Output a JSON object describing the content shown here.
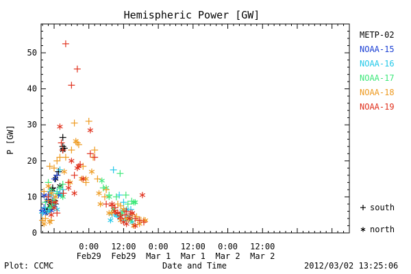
{
  "chart_data": {
    "type": "scatter",
    "title": "Hemispheric Power [GW]",
    "ylabel": "P [GW]",
    "xlabel": "Date and Time",
    "ylim": [
      0,
      58
    ],
    "xlim": [
      -16.5,
      90
    ],
    "yticks": [
      0,
      10,
      20,
      30,
      40,
      50
    ],
    "xticks": [
      {
        "x": 0,
        "time": "0:00",
        "date": "Feb29"
      },
      {
        "x": 12,
        "time": "12:00",
        "date": "Feb29"
      },
      {
        "x": 24,
        "time": "0:00",
        "date": "Mar 1"
      },
      {
        "x": 36,
        "time": "12:00",
        "date": "Mar 1"
      },
      {
        "x": 48,
        "time": "0:00",
        "date": "Mar 2"
      },
      {
        "x": 60,
        "time": "12:00",
        "date": "Mar 2"
      }
    ],
    "markers": [
      {
        "symbol": "+",
        "label": "south"
      },
      {
        "symbol": "*",
        "label": "north"
      }
    ],
    "series": [
      {
        "name": "METP-02",
        "color": "#000000",
        "south": [
          [
            -9,
            26.5
          ],
          [
            -8.5,
            23.5
          ],
          [
            -9,
            24
          ],
          [
            -11,
            16
          ],
          [
            -10.5,
            17
          ],
          [
            -12.5,
            12.5
          ],
          [
            -13,
            7.8
          ],
          [
            -12,
            9
          ],
          [
            -14.5,
            5.8
          ],
          [
            -13.5,
            6.5
          ],
          [
            -12.5,
            8.2
          ]
        ],
        "north": [
          [
            -9,
            23
          ],
          [
            -10,
            13
          ],
          [
            -11.5,
            15
          ],
          [
            -12.5,
            12
          ],
          [
            -13.5,
            7.5
          ],
          [
            -14,
            9
          ],
          [
            -15,
            6.5
          ],
          [
            -13,
            8
          ]
        ]
      },
      {
        "name": "NOAA-15",
        "color": "#1a3fd4",
        "south": [
          [
            -11,
            16
          ],
          [
            -11.8,
            15
          ],
          [
            -10,
            11
          ],
          [
            -12.5,
            9
          ],
          [
            -14,
            10.5
          ],
          [
            -15.5,
            7
          ],
          [
            -16,
            6.2
          ],
          [
            -11.5,
            8
          ]
        ],
        "north": [
          [
            -15.5,
            10.5
          ],
          [
            -14.5,
            9
          ],
          [
            -13,
            6.2
          ],
          [
            -12,
            7.5
          ],
          [
            -10.5,
            10.5
          ],
          [
            -15,
            5.5
          ],
          [
            -16,
            6
          ]
        ]
      },
      {
        "name": "NOAA-16",
        "color": "#22c8e8",
        "south": [
          [
            -10,
            17.5
          ],
          [
            -13.5,
            11.5
          ],
          [
            -14,
            10
          ],
          [
            -11,
            11.5
          ],
          [
            -9,
            12
          ],
          [
            -15,
            7
          ],
          [
            -16,
            5.5
          ],
          [
            -12,
            7.3
          ],
          [
            8.5,
            17.5
          ],
          [
            10.5,
            10.5
          ],
          [
            12,
            8.5
          ],
          [
            8,
            5
          ],
          [
            10,
            4.5
          ],
          [
            12.5,
            3.5
          ],
          [
            13,
            5
          ],
          [
            14.5,
            6.5
          ]
        ],
        "north": [
          [
            -13,
            10.5
          ],
          [
            -12.5,
            8
          ],
          [
            -11,
            6.5
          ],
          [
            -9.5,
            10.5
          ],
          [
            -14,
            6
          ],
          [
            7.5,
            3.5
          ],
          [
            9.5,
            5
          ],
          [
            11.5,
            6
          ],
          [
            13,
            6.5
          ],
          [
            14,
            4.5
          ],
          [
            15,
            3
          ]
        ]
      },
      {
        "name": "NOAA-17",
        "color": "#3ee87a",
        "south": [
          [
            -14,
            14
          ],
          [
            -13,
            12
          ],
          [
            -9,
            13.5
          ],
          [
            -11,
            11
          ],
          [
            -15,
            8.5
          ],
          [
            -13.5,
            7
          ],
          [
            -12,
            8
          ],
          [
            5,
            12.5
          ],
          [
            7,
            10.5
          ],
          [
            9.5,
            10
          ],
          [
            10.8,
            16.5
          ],
          [
            12.8,
            10.5
          ],
          [
            13.5,
            8
          ],
          [
            14.8,
            8.8
          ],
          [
            11.5,
            5.5
          ],
          [
            12.5,
            4
          ]
        ],
        "north": [
          [
            -12,
            9
          ],
          [
            -9,
            10
          ],
          [
            -13,
            7.5
          ],
          [
            -10,
            12.5
          ],
          [
            4.5,
            14.5
          ],
          [
            6,
            12.5
          ],
          [
            7,
            10
          ],
          [
            8.5,
            6.5
          ],
          [
            11,
            5
          ],
          [
            14.5,
            3.5
          ],
          [
            15.5,
            8.5
          ],
          [
            16,
            8.5
          ]
        ]
      },
      {
        "name": "NOAA-18",
        "color": "#ee9a20",
        "south": [
          [
            -10,
            21
          ],
          [
            -11,
            20
          ],
          [
            -12,
            18
          ],
          [
            -13.5,
            18.5
          ],
          [
            -15.5,
            11.5
          ],
          [
            -14,
            9
          ],
          [
            -15,
            4
          ],
          [
            -16,
            3.5
          ],
          [
            -13,
            3.5
          ],
          [
            -8,
            21
          ],
          [
            -6,
            23
          ],
          [
            -5,
            30.5
          ],
          [
            -4,
            25
          ],
          [
            -3.5,
            24.5
          ],
          [
            -2,
            18.5
          ],
          [
            -1,
            14
          ],
          [
            0,
            31
          ],
          [
            1.5,
            21
          ],
          [
            2,
            23
          ],
          [
            3,
            15
          ],
          [
            6,
            12
          ],
          [
            5.5,
            10
          ],
          [
            8,
            5.5
          ],
          [
            10,
            8
          ],
          [
            11,
            7.5
          ],
          [
            13.5,
            4
          ],
          [
            15,
            5
          ],
          [
            16.5,
            4.5
          ],
          [
            17,
            3.5
          ],
          [
            18,
            3.5
          ],
          [
            19,
            3.5
          ]
        ],
        "north": [
          [
            -14,
            13
          ],
          [
            -13,
            11
          ],
          [
            -13.5,
            3
          ],
          [
            -15.5,
            2.5
          ],
          [
            -11.5,
            10
          ],
          [
            -8.5,
            17
          ],
          [
            -6.5,
            14
          ],
          [
            -4.5,
            25.5
          ],
          [
            -2.5,
            15
          ],
          [
            -1,
            15
          ],
          [
            1,
            17
          ],
          [
            3.5,
            11
          ],
          [
            4,
            8
          ],
          [
            7,
            5.5
          ],
          [
            9,
            6
          ],
          [
            11,
            3.5
          ],
          [
            12,
            6.5
          ],
          [
            13.5,
            4
          ],
          [
            15.5,
            2
          ],
          [
            17.5,
            2.5
          ],
          [
            19.5,
            3.5
          ]
        ]
      },
      {
        "name": "NOAA-19",
        "color": "#e0301c",
        "south": [
          [
            -8,
            52.5
          ],
          [
            -6,
            41
          ],
          [
            -4,
            45.5
          ],
          [
            -9,
            23
          ],
          [
            -9.5,
            25
          ],
          [
            -8.8,
            11
          ],
          [
            -7,
            14
          ],
          [
            -5,
            16
          ],
          [
            -3,
            19
          ],
          [
            0.5,
            22
          ],
          [
            2,
            21
          ],
          [
            -14,
            10
          ],
          [
            -13,
            8.5
          ],
          [
            -11,
            5.5
          ],
          [
            6,
            8
          ],
          [
            8,
            7.5
          ],
          [
            9,
            7
          ],
          [
            10,
            5.5
          ],
          [
            11,
            4
          ],
          [
            12.5,
            5
          ],
          [
            13,
            6
          ],
          [
            14.5,
            5.5
          ],
          [
            16,
            4
          ],
          [
            17.5,
            3.5
          ],
          [
            19,
            3
          ]
        ],
        "north": [
          [
            -10,
            29.5
          ],
          [
            -6,
            20
          ],
          [
            -4,
            18
          ],
          [
            -3.5,
            18.5
          ],
          [
            -2,
            15
          ],
          [
            0.5,
            28.5
          ],
          [
            -7,
            12.5
          ],
          [
            -5,
            11
          ],
          [
            -12,
            7
          ],
          [
            -11.5,
            8.5
          ],
          [
            -13,
            5
          ],
          [
            8,
            8
          ],
          [
            9,
            6
          ],
          [
            10,
            5.5
          ],
          [
            11,
            4.5
          ],
          [
            12,
            3
          ],
          [
            13,
            2.5
          ],
          [
            14,
            4
          ],
          [
            15,
            5.5
          ],
          [
            16,
            2
          ],
          [
            18.5,
            10.5
          ]
        ]
      }
    ]
  },
  "footer": {
    "left": "Plot: CCMC",
    "center": "Date and Time",
    "right": "2012/03/02 13:25:06"
  }
}
